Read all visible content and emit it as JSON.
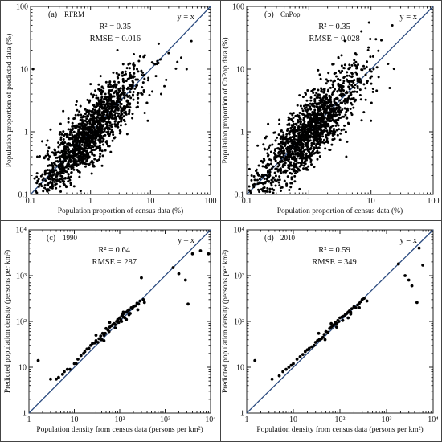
{
  "chart_data": [
    {
      "type": "scatter",
      "panel_label": "(a)",
      "panel_name": "RFRM",
      "xlabel": "Population proportion of census data (%)",
      "ylabel": "Population proportion of predicted data (%)",
      "xscale": "log",
      "yscale": "log",
      "xlim": [
        0.1,
        100
      ],
      "ylim": [
        0.1,
        100
      ],
      "x_ticks": [
        "0.1",
        "1",
        "10",
        "100"
      ],
      "y_ticks": [
        "0.1",
        "1",
        "10",
        "100"
      ],
      "stats": [
        "R² = 0.35",
        "RMSE = 0.016"
      ],
      "line_label": "y = x",
      "n_points": 1500,
      "spread_dex": 0.24,
      "x_center_dex": 0.0,
      "x_sd_dex": 0.42,
      "series": [
        {
          "x": [
            12,
            20,
            28,
            40,
            48,
            0.11,
            8,
            9,
            15,
            3.5,
            2.8,
            4.2,
            0.13,
            0.2
          ],
          "y": [
            12,
            18,
            13,
            10,
            28,
            10,
            2,
            1.5,
            4,
            12,
            20,
            3,
            0.4,
            0.15
          ]
        }
      ]
    },
    {
      "type": "scatter",
      "panel_label": "(b)",
      "panel_name": "CnPop",
      "xlabel": "Population proportion of census data (%)",
      "ylabel": "Population proportion of CnPop data (%)",
      "xscale": "log",
      "yscale": "log",
      "xlim": [
        0.1,
        100
      ],
      "ylim": [
        0.1,
        100
      ],
      "x_ticks": [
        "0.1",
        "1",
        "10",
        "100"
      ],
      "y_ticks": [
        "0.1",
        "1",
        "10",
        "100"
      ],
      "stats": [
        "R² = 0.35",
        "RMSE = 0.028"
      ],
      "line_label": "y = x",
      "n_points": 1500,
      "spread_dex": 0.27,
      "x_center_dex": 0.0,
      "x_sd_dex": 0.42,
      "series": [
        {
          "x": [
            9,
            11,
            12,
            20,
            22,
            7,
            3,
            0.12,
            0.15,
            2.5,
            10,
            4
          ],
          "y": [
            20,
            10,
            30,
            5,
            50,
            40,
            15,
            0.2,
            0.6,
            12,
            1.5,
            0.4
          ]
        }
      ]
    },
    {
      "type": "scatter",
      "panel_label": "(c)",
      "panel_name": "1990",
      "xlabel": "Population density from census data (persons per km²)",
      "ylabel": "Predicted population density (persons per km²)",
      "xscale": "log",
      "yscale": "log",
      "xlim": [
        1,
        10000
      ],
      "ylim": [
        1,
        10000
      ],
      "x_ticks": [
        "1",
        "10",
        "10²",
        "10³",
        "10⁴"
      ],
      "y_ticks": [
        "1",
        "10",
        "10²",
        "10³",
        "10⁴"
      ],
      "stats": [
        "R² = 0.64",
        "RMSE = 287"
      ],
      "line_label": "y – x",
      "series": [
        {
          "x": [
            1.6,
            3,
            4,
            4.5,
            5.5,
            6,
            7,
            8,
            10,
            11,
            12,
            14,
            16,
            17,
            19,
            21,
            23,
            25,
            28,
            30,
            33,
            35,
            38,
            40,
            42,
            45,
            48,
            50,
            55,
            58,
            60,
            65,
            70,
            75,
            80,
            85,
            90,
            95,
            100,
            105,
            110,
            115,
            120,
            125,
            130,
            140,
            150,
            160,
            170,
            180,
            190,
            200,
            220,
            240,
            260,
            280,
            300,
            330,
            1500,
            2000,
            2800,
            3200,
            4000,
            6000,
            9000,
            30,
            60,
            110,
            160,
            250,
            45,
            80,
            140,
            350,
            120
          ],
          "y": [
            14,
            5.5,
            5.5,
            6,
            7,
            8,
            9,
            9,
            12,
            12,
            15,
            18,
            20,
            22,
            25,
            26,
            30,
            33,
            34,
            38,
            35,
            42,
            48,
            40,
            55,
            50,
            55,
            70,
            65,
            60,
            75,
            80,
            85,
            90,
            85,
            100,
            110,
            95,
            120,
            110,
            130,
            140,
            125,
            150,
            120,
            160,
            170,
            180,
            150,
            200,
            190,
            210,
            220,
            250,
            240,
            280,
            900,
            300,
            1500,
            1100,
            800,
            240,
            3000,
            3500,
            3000,
            50,
            95,
            100,
            140,
            180,
            38,
            72,
            110,
            260,
            160
          ]
        }
      ]
    },
    {
      "type": "scatter",
      "panel_label": "(d)",
      "panel_name": "2010",
      "xlabel": "Population density from census data (persons per km²)",
      "ylabel": "Predicted population density (persons per km²)",
      "xscale": "log",
      "yscale": "log",
      "xlim": [
        1,
        10000
      ],
      "ylim": [
        1,
        10000
      ],
      "x_ticks": [
        "1",
        "10",
        "10²",
        "10³",
        "10⁴"
      ],
      "y_ticks": [
        "1",
        "10",
        "10²",
        "10³",
        "10⁴"
      ],
      "stats": [
        "R² = 0.59",
        "RMSE = 349"
      ],
      "line_label": "y = x",
      "series": [
        {
          "x": [
            1.5,
            3.5,
            5,
            6,
            7,
            8,
            9,
            10,
            12,
            14,
            16,
            18,
            20,
            22,
            25,
            28,
            30,
            33,
            36,
            40,
            43,
            46,
            50,
            55,
            60,
            65,
            70,
            75,
            80,
            85,
            90,
            95,
            100,
            110,
            120,
            130,
            140,
            150,
            160,
            170,
            180,
            200,
            220,
            240,
            260,
            280,
            300,
            330,
            1800,
            2500,
            3000,
            3500,
            5000,
            6000,
            4500,
            35,
            65,
            115,
            170,
            260,
            48,
            85,
            150,
            380
          ],
          "y": [
            14,
            5.5,
            6.5,
            8,
            9,
            10,
            11,
            12,
            15,
            17,
            19,
            22,
            24,
            26,
            28,
            30,
            35,
            38,
            40,
            42,
            45,
            52,
            60,
            58,
            70,
            75,
            80,
            85,
            95,
            90,
            105,
            100,
            120,
            125,
            130,
            140,
            150,
            160,
            170,
            160,
            190,
            210,
            200,
            230,
            250,
            270,
            300,
            320,
            1800,
            1000,
            800,
            600,
            4000,
            1700,
            260,
            55,
            90,
            105,
            145,
            200,
            40,
            75,
            120,
            280
          ]
        }
      ]
    }
  ]
}
